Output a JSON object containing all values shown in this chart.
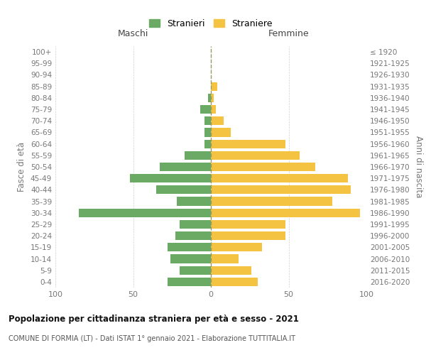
{
  "age_groups": [
    "100+",
    "95-99",
    "90-94",
    "85-89",
    "80-84",
    "75-79",
    "70-74",
    "65-69",
    "60-64",
    "55-59",
    "50-54",
    "45-49",
    "40-44",
    "35-39",
    "30-34",
    "25-29",
    "20-24",
    "15-19",
    "10-14",
    "5-9",
    "0-4"
  ],
  "birth_years": [
    "≤ 1920",
    "1921-1925",
    "1926-1930",
    "1931-1935",
    "1936-1940",
    "1941-1945",
    "1946-1950",
    "1951-1955",
    "1956-1960",
    "1961-1965",
    "1966-1970",
    "1971-1975",
    "1976-1980",
    "1981-1985",
    "1986-1990",
    "1991-1995",
    "1996-2000",
    "2001-2005",
    "2006-2010",
    "2011-2015",
    "2016-2020"
  ],
  "males": [
    0,
    0,
    0,
    0,
    2,
    7,
    4,
    4,
    4,
    17,
    33,
    52,
    35,
    22,
    85,
    20,
    23,
    28,
    26,
    20,
    28
  ],
  "females": [
    0,
    0,
    0,
    4,
    2,
    3,
    8,
    13,
    48,
    57,
    67,
    88,
    90,
    78,
    96,
    48,
    48,
    33,
    18,
    26,
    30
  ],
  "male_color": "#6aaa64",
  "female_color": "#f5c342",
  "male_label": "Stranieri",
  "female_label": "Straniere",
  "title": "Popolazione per cittadinanza straniera per età e sesso - 2021",
  "subtitle": "COMUNE DI FORMIA (LT) - Dati ISTAT 1° gennaio 2021 - Elaborazione TUTTITALIA.IT",
  "xlabel_left": "Maschi",
  "xlabel_right": "Femmine",
  "ylabel_left": "Fasce di età",
  "ylabel_right": "Anni di nascita",
  "xlim": 100,
  "background_color": "#ffffff",
  "grid_color": "#d0d0d0",
  "text_color": "#777777"
}
